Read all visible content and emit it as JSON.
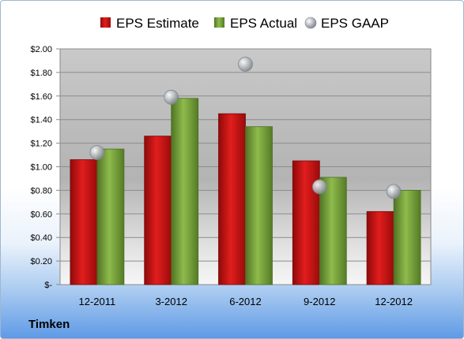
{
  "company": "Timken",
  "chart_data": {
    "type": "bar",
    "categories": [
      "12-2011",
      "3-2012",
      "6-2012",
      "9-2012",
      "12-2012"
    ],
    "series": [
      {
        "name": "EPS Estimate",
        "kind": "bar",
        "color": "#cc1111",
        "values": [
          1.06,
          1.26,
          1.45,
          1.05,
          0.62
        ]
      },
      {
        "name": "EPS Actual",
        "kind": "bar",
        "color": "#7aa83a",
        "values": [
          1.15,
          1.58,
          1.34,
          0.91,
          0.8
        ]
      },
      {
        "name": "EPS GAAP",
        "kind": "marker",
        "color": "#b8bcc2",
        "values": [
          1.12,
          1.59,
          1.87,
          0.83,
          0.79
        ]
      }
    ],
    "y_ticks": [
      "$2.00",
      "$1.80",
      "$1.60",
      "$1.40",
      "$1.20",
      "$1.00",
      "$0.80",
      "$0.60",
      "$0.40",
      "$0.20",
      "$-"
    ],
    "ylim": [
      0,
      2.0
    ],
    "legend_position": "top",
    "grid": true
  }
}
